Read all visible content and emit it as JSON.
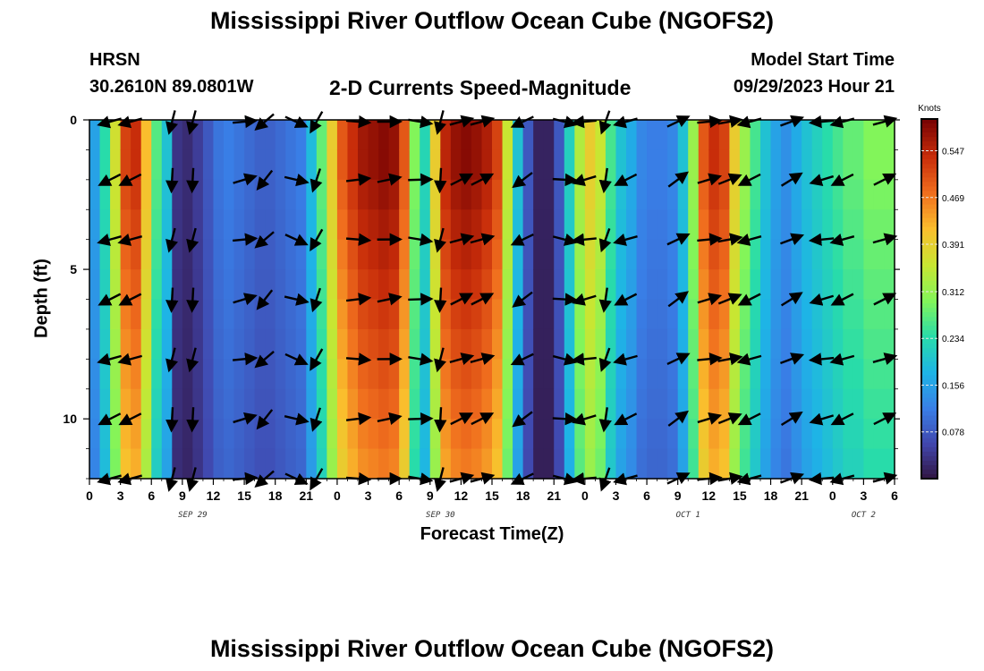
{
  "page": {
    "title": "Mississippi River Outflow Ocean Cube (NGOFS2)",
    "station_name": "HRSN",
    "coords": "30.2610N  89.0801W",
    "subtitle": "2-D Currents Speed-Magnitude",
    "model_label": "Model Start Time",
    "model_time": "09/29/2023 Hour 21",
    "footer_title": "Mississippi River Outflow Ocean Cube (NGOFS2)"
  },
  "chart_data": {
    "type": "heatmap",
    "title": "2-D Currents Speed-Magnitude",
    "xlabel": "Forecast Time(Z)",
    "ylabel": "Depth (ft)",
    "xlim": [
      0,
      78
    ],
    "ylim": [
      0,
      12
    ],
    "x_ticks": [
      "0",
      "3",
      "6",
      "9",
      "12",
      "15",
      "18",
      "21",
      "0",
      "3",
      "6",
      "9",
      "12",
      "15",
      "18",
      "21",
      "0",
      "3",
      "6",
      "9",
      "12",
      "15",
      "18",
      "21",
      "0",
      "3",
      "6"
    ],
    "y_ticks": [
      "0",
      "5",
      "10"
    ],
    "date_labels": [
      {
        "text": "SEP 29",
        "hour": 10
      },
      {
        "text": "SEP 30",
        "hour": 34
      },
      {
        "text": "OCT 1",
        "hour": 58
      },
      {
        "text": "OCT 2",
        "hour": 75
      }
    ],
    "colorbar": {
      "label": "Knots",
      "ticks": [
        "0.547",
        "0.469",
        "0.391",
        "0.312",
        "0.234",
        "0.156",
        "0.078"
      ],
      "tick_values": [
        0.547,
        0.469,
        0.391,
        0.312,
        0.234,
        0.156,
        0.078
      ],
      "range": [
        0.0,
        0.6
      ]
    },
    "speed_profile_hours": [
      0,
      1,
      2,
      3,
      4,
      5,
      6,
      7,
      8,
      9,
      10,
      11,
      12,
      13,
      14,
      15,
      16,
      17,
      18,
      19,
      20,
      21,
      22,
      23,
      24,
      25,
      26,
      27,
      28,
      29,
      30,
      31,
      32,
      33,
      34,
      35,
      36,
      37,
      38,
      39,
      40,
      41,
      42,
      43,
      44,
      45,
      46,
      47,
      48,
      49,
      50,
      51,
      52,
      53,
      54,
      55,
      56,
      57,
      58,
      59,
      60,
      61,
      62,
      63,
      64,
      65,
      66,
      67,
      68,
      69,
      70,
      71,
      72,
      73,
      74,
      75,
      76,
      77
    ],
    "surface_speed": [
      0.16,
      0.24,
      0.37,
      0.52,
      0.54,
      0.42,
      0.27,
      0.2,
      0.04,
      0.03,
      0.05,
      0.08,
      0.11,
      0.12,
      0.11,
      0.1,
      0.09,
      0.09,
      0.1,
      0.11,
      0.12,
      0.19,
      0.28,
      0.4,
      0.5,
      0.54,
      0.57,
      0.58,
      0.59,
      0.58,
      0.5,
      0.3,
      0.23,
      0.4,
      0.55,
      0.58,
      0.59,
      0.58,
      0.56,
      0.52,
      0.36,
      0.2,
      0.08,
      0.02,
      0.02,
      0.08,
      0.22,
      0.34,
      0.4,
      0.36,
      0.26,
      0.2,
      0.17,
      0.13,
      0.12,
      0.12,
      0.13,
      0.2,
      0.32,
      0.5,
      0.54,
      0.52,
      0.4,
      0.32,
      0.26,
      0.2,
      0.16,
      0.14,
      0.17,
      0.2,
      0.22,
      0.24,
      0.26,
      0.28,
      0.28,
      0.3,
      0.3,
      0.3
    ],
    "depth_scale": [
      1.0,
      1.0,
      0.98,
      0.96,
      0.94,
      0.92,
      0.9,
      0.88,
      0.86,
      0.84,
      0.82,
      0.8
    ],
    "arrow_hours": [
      2,
      4,
      8,
      10,
      15,
      17,
      20,
      22,
      26,
      29,
      32,
      34,
      36,
      38,
      42,
      46,
      48,
      50,
      52,
      57,
      60,
      62,
      64,
      68,
      71,
      73,
      77
    ],
    "arrow_directions_deg": [
      200,
      200,
      260,
      -100,
      10,
      225,
      -20,
      -115,
      0,
      5,
      -5,
      -100,
      20,
      20,
      210,
      -10,
      190,
      -105,
      200,
      30,
      10,
      15,
      200,
      25,
      190,
      200,
      20
    ]
  }
}
